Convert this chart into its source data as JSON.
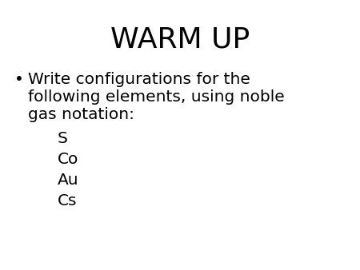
{
  "title": "WARM UP",
  "title_fontsize": 26,
  "title_color": "#000000",
  "background_color": "#ffffff",
  "bullet_line1": "Write configurations for the",
  "bullet_line2": "following elements, using noble",
  "bullet_line3": "gas notation:",
  "bullet_fontsize": 14.5,
  "bullet_symbol": "•",
  "elements": [
    "S",
    "Co",
    "Au",
    "Cs"
  ],
  "elements_fontsize": 14.5,
  "text_color": "#000000"
}
